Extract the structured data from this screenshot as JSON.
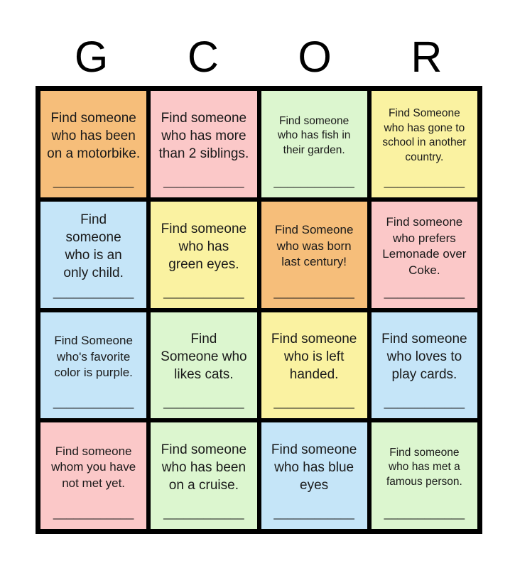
{
  "header": {
    "letters": [
      "G",
      "C",
      "O",
      "R"
    ]
  },
  "colors": {
    "orange": "#F6BE7A",
    "pink": "#FBC8C8",
    "green": "#DCF6CF",
    "yellow": "#FAF2A1",
    "blue": "#C5E5F8",
    "border": "#000000",
    "text": "#1A1A1A",
    "background": "#FFFFFF"
  },
  "grid": {
    "blank": "____________",
    "cells": [
      {
        "text": "Find someone\nwho has been\non a motorbike.",
        "color": "orange",
        "size": "lg"
      },
      {
        "text": "Find someone\nwho has more\nthan 2 siblings.",
        "color": "pink",
        "size": "lg"
      },
      {
        "text": "Find someone\nwho has fish in\ntheir garden.",
        "color": "green",
        "size": "sm"
      },
      {
        "text": "Find Someone\nwho has gone to\nschool in another\ncountry.",
        "color": "yellow",
        "size": "sm"
      },
      {
        "text": "Find\nsomeone\nwho is an\nonly child.",
        "color": "blue",
        "size": "lg"
      },
      {
        "text": "Find someone\nwho has\ngreen eyes.",
        "color": "yellow",
        "size": "lg"
      },
      {
        "text": "Find Someone\nwho was born\nlast century!",
        "color": "orange",
        "size": "md"
      },
      {
        "text": "Find someone\nwho prefers\nLemonade over\nCoke.",
        "color": "pink",
        "size": "md"
      },
      {
        "text": "Find Someone\nwho's favorite\ncolor is purple.",
        "color": "blue",
        "size": "md"
      },
      {
        "text": "Find\nSomeone who\nlikes cats.",
        "color": "green",
        "size": "lg"
      },
      {
        "text": "Find someone\nwho is left\nhanded.",
        "color": "yellow",
        "size": "lg"
      },
      {
        "text": "Find someone\nwho loves to\nplay cards.",
        "color": "blue",
        "size": "lg"
      },
      {
        "text": "Find someone\nwhom you have\nnot met yet.",
        "color": "pink",
        "size": "md"
      },
      {
        "text": "Find someone\nwho has been\non a cruise.",
        "color": "green",
        "size": "lg"
      },
      {
        "text": "Find someone\nwho has blue\neyes",
        "color": "blue",
        "size": "lg"
      },
      {
        "text": "Find someone\nwho has met a\nfamous person.",
        "color": "green",
        "size": "sm"
      }
    ]
  }
}
